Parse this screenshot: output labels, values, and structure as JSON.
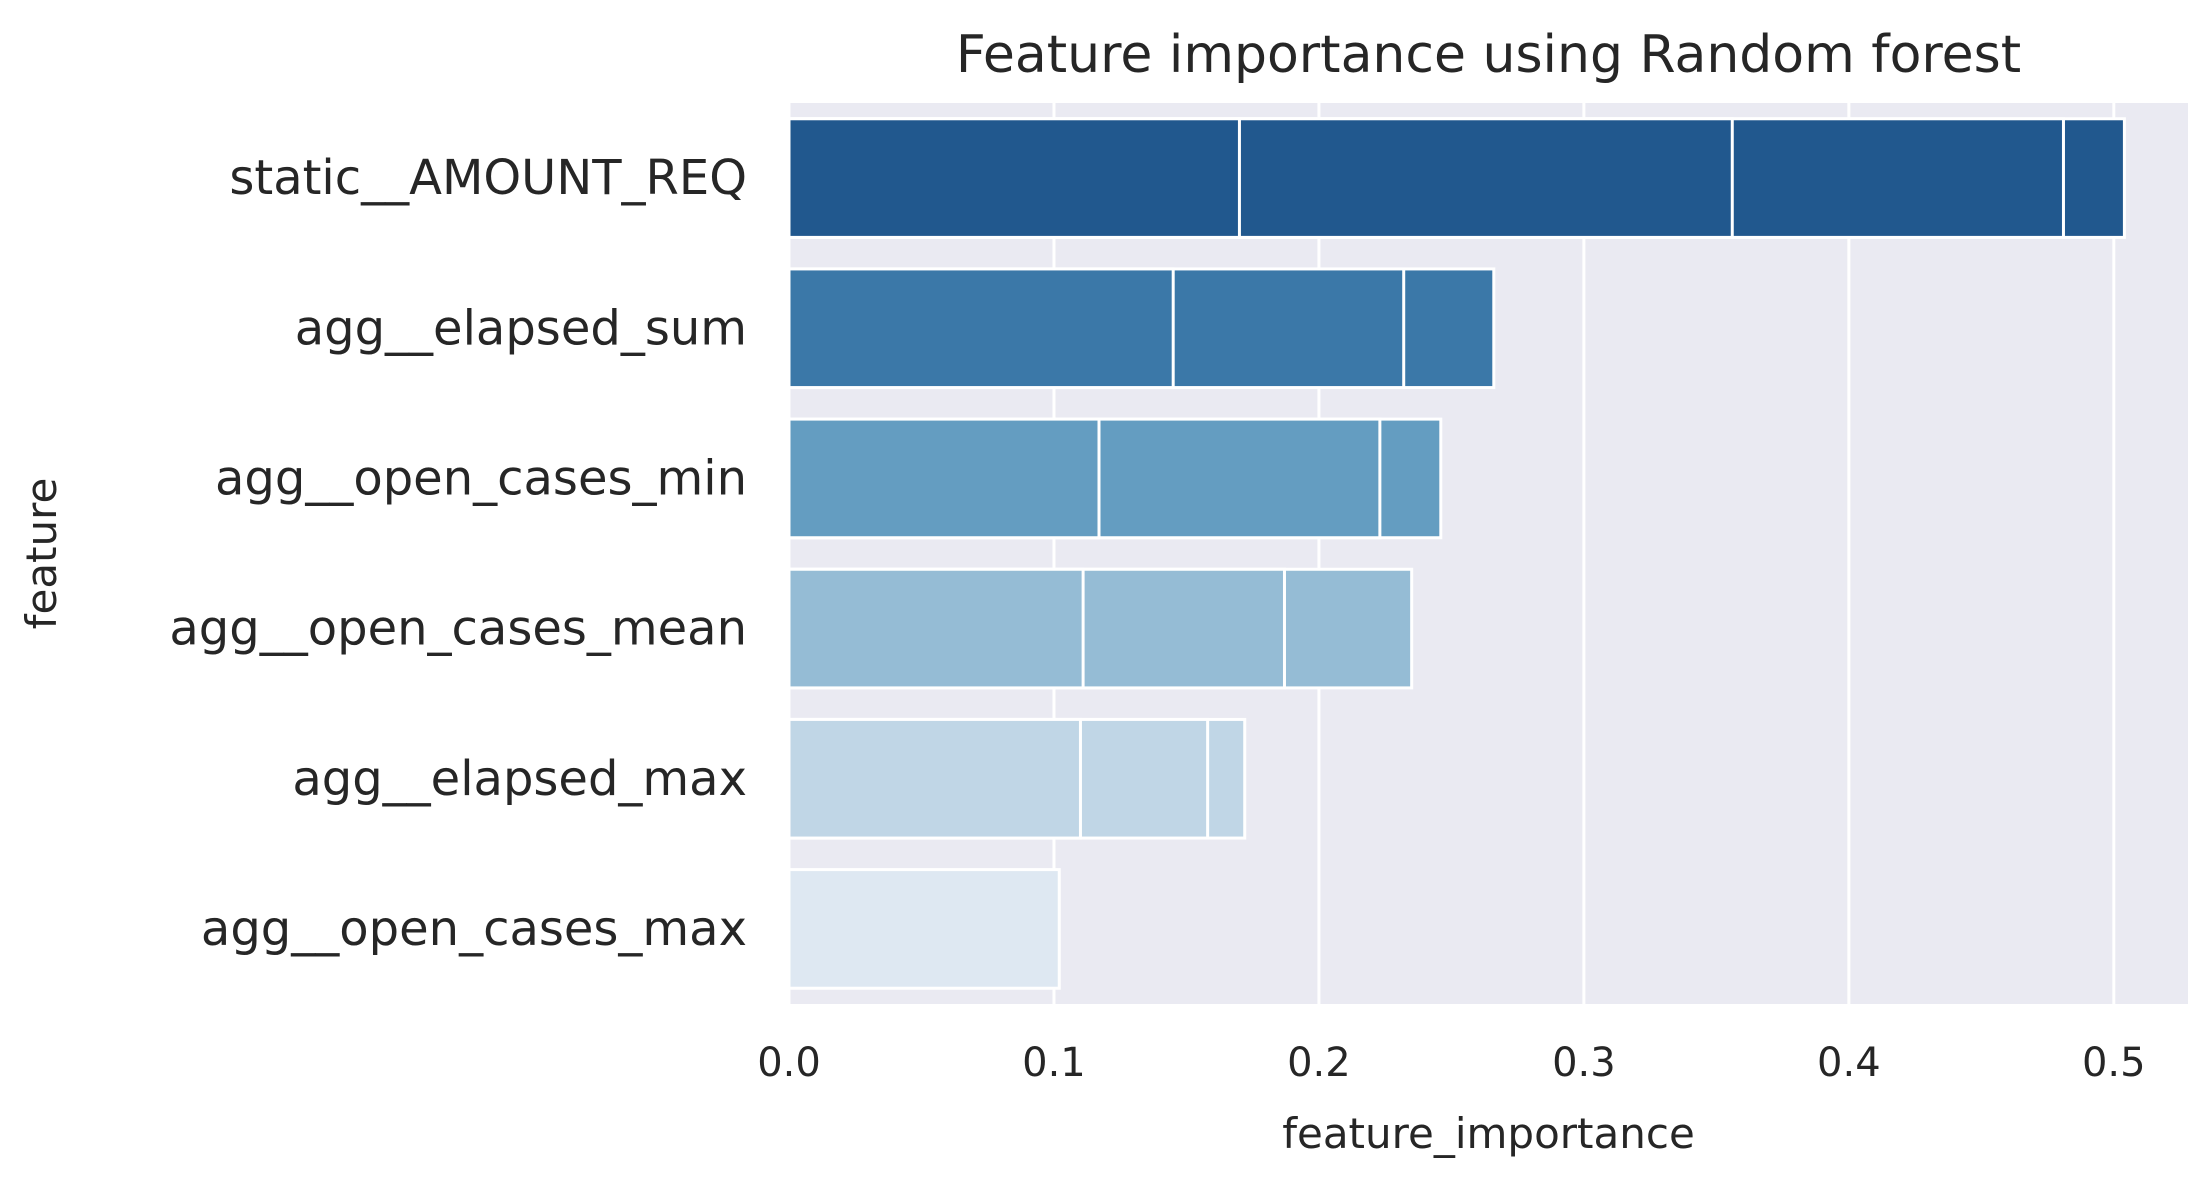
{
  "chart_data": {
    "type": "bar",
    "orientation": "horizontal",
    "title": "Feature importance using Random forest",
    "xlabel": "feature_importance",
    "ylabel": "feature",
    "xlim": [
      0,
      0.528
    ],
    "xticks": [
      0.0,
      0.1,
      0.2,
      0.3,
      0.4,
      0.5
    ],
    "xtick_labels": [
      "0.0",
      "0.1",
      "0.2",
      "0.3",
      "0.4",
      "0.5"
    ],
    "grid": true,
    "categories": [
      "static__AMOUNT_REQ",
      "agg__elapsed_sum",
      "agg__open_cases_min",
      "agg__open_cases_mean",
      "agg__elapsed_max",
      "agg__open_cases_max"
    ],
    "segments": [
      [
        0.17,
        0.356,
        0.481,
        0.504
      ],
      [
        0.145,
        0.232,
        0.266
      ],
      [
        0.117,
        0.223,
        0.246
      ],
      [
        0.111,
        0.187,
        0.235
      ],
      [
        0.11,
        0.158,
        0.172
      ],
      [
        0.102
      ]
    ],
    "values": [
      0.504,
      0.266,
      0.246,
      0.235,
      0.172,
      0.102
    ],
    "colors": [
      "#21588e",
      "#3b78a8",
      "#649dc1",
      "#95bcd5",
      "#c0d6e6",
      "#dee8f2"
    ],
    "background_color": "#eaeaf2",
    "grid_color": "#ffffff"
  }
}
